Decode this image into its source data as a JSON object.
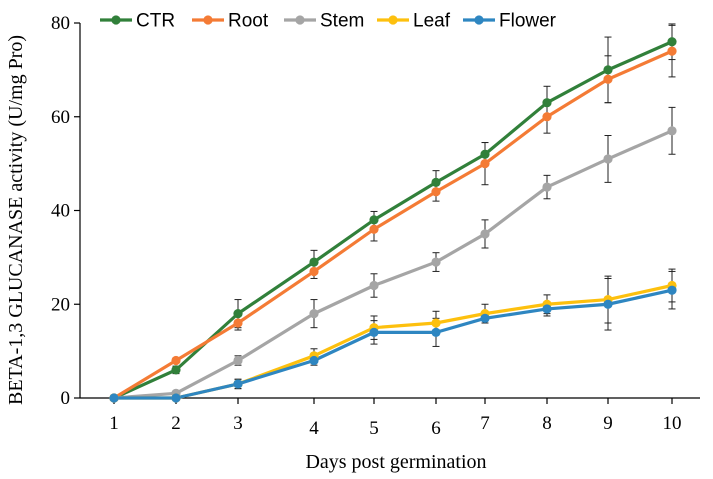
{
  "chart_data": {
    "type": "line",
    "title": "",
    "xlabel": "Days post germination",
    "ylabel": "BETA-1,3 GLUCANASE  activity (U/mg Pro)",
    "categories": [
      "1",
      "2",
      "3",
      "4",
      "5",
      "6",
      "7",
      "8",
      "9",
      "10"
    ],
    "ylim": [
      0,
      80
    ],
    "yticks": [
      "0",
      "20",
      "40",
      "60",
      "80"
    ],
    "grid": false,
    "legend_position": "top",
    "series": [
      {
        "name": "CTR",
        "color": "#31803a",
        "values": [
          0,
          6,
          18,
          29,
          38,
          46,
          52,
          63,
          70,
          76
        ],
        "errors": [
          0,
          0.8,
          3,
          2.5,
          1.8,
          2.5,
          2.5,
          3.5,
          7,
          3.8
        ]
      },
      {
        "name": "Root",
        "color": "#f47b35",
        "values": [
          0,
          8,
          16,
          27,
          36,
          44,
          50,
          60,
          68,
          74
        ],
        "errors": [
          0,
          0.5,
          1.5,
          1.5,
          2.5,
          2,
          4.5,
          3.5,
          5,
          5.5
        ]
      },
      {
        "name": "Stem",
        "color": "#a5a5a5",
        "values": [
          0,
          1,
          8,
          18,
          24,
          29,
          35,
          45,
          51,
          57
        ],
        "errors": [
          0,
          0.3,
          1,
          3,
          2.5,
          2,
          3,
          2.5,
          5,
          5
        ]
      },
      {
        "name": "Leaf",
        "color": "#fdc00e",
        "values": [
          0,
          0,
          3,
          9,
          15,
          16,
          18,
          20,
          21,
          24
        ],
        "errors": [
          0,
          0,
          1,
          1.5,
          2.5,
          2.5,
          2,
          2,
          5,
          3.5
        ]
      },
      {
        "name": "Flower",
        "color": "#2e86c1",
        "values": [
          0,
          0,
          3,
          8,
          14,
          14,
          17,
          19,
          20,
          23
        ],
        "errors": [
          0,
          0,
          1,
          1,
          2.5,
          3,
          1,
          1.5,
          5.5,
          4
        ]
      }
    ]
  }
}
